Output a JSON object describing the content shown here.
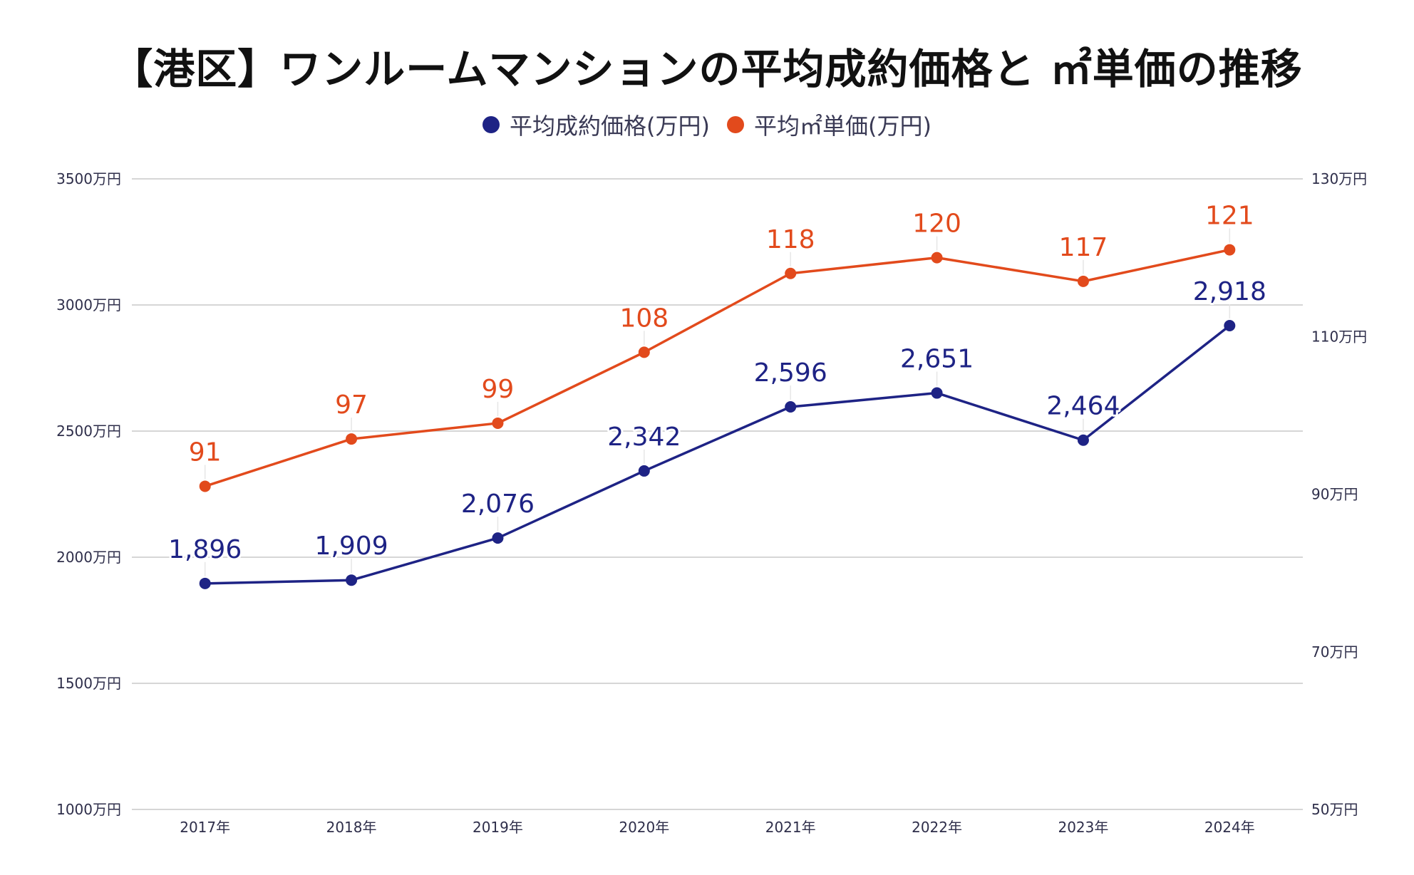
{
  "chart_data": {
    "type": "line",
    "title": "【港区】ワンルームマンションの平均成約価格と ㎡単価の推移",
    "categories": [
      "2017年",
      "2018年",
      "2019年",
      "2020年",
      "2021年",
      "2022年",
      "2023年",
      "2024年"
    ],
    "series": [
      {
        "name": "平均成約価格(万円)",
        "axis": "left",
        "color": "#1e2385",
        "values": [
          1896,
          1909,
          2076,
          2342,
          2596,
          2651,
          2464,
          2918
        ],
        "labels": [
          "1,896",
          "1,909",
          "2,076",
          "2,342",
          "2,596",
          "2,651",
          "2,464",
          "2,918"
        ]
      },
      {
        "name": "平均㎡単価(万円)",
        "axis": "right",
        "color": "#e24a1c",
        "values": [
          91,
          97,
          99,
          108,
          118,
          120,
          117,
          121
        ],
        "labels": [
          "91",
          "97",
          "99",
          "108",
          "118",
          "120",
          "117",
          "121"
        ]
      }
    ],
    "left_axis": {
      "ylim": [
        1000,
        3500
      ],
      "ticks": [
        1000,
        1500,
        2000,
        2500,
        3000,
        3500
      ],
      "tick_labels": [
        "1000万円",
        "1500万円",
        "2000万円",
        "2500万円",
        "3000万円",
        "3500万円"
      ]
    },
    "right_axis": {
      "ylim": [
        50,
        130
      ],
      "ticks": [
        50,
        70,
        90,
        110,
        130
      ],
      "tick_labels": [
        "50万円",
        "70万円",
        "90万円",
        "110万円",
        "130万円"
      ]
    },
    "xlabel": "",
    "ylabel": "",
    "grid": true,
    "legend_position": "top-center"
  }
}
